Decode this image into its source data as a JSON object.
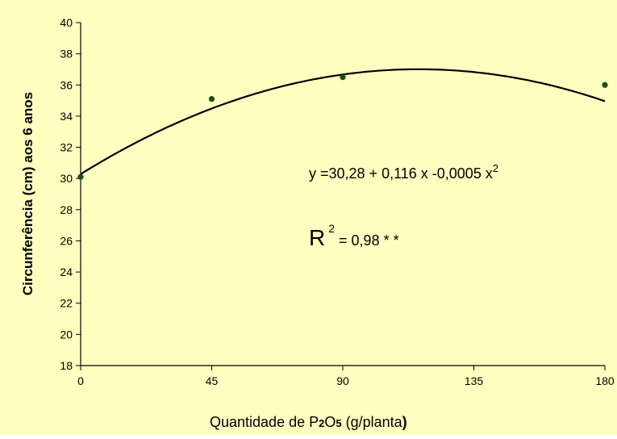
{
  "chart_data": {
    "type": "scatter",
    "title": "",
    "ylabel": "Circunferência  (cm) aos 6 anos",
    "xlabel": {
      "prefix": "Quantidade de P",
      "sub1": "2",
      "mid": "O",
      "sub2": "5",
      "unit": "  (g/planta",
      "close": ")"
    },
    "x_ticks": [
      0,
      45,
      90,
      135,
      180
    ],
    "y_ticks": [
      18,
      20,
      22,
      24,
      26,
      28,
      30,
      32,
      34,
      36,
      38,
      40
    ],
    "xlim": [
      0,
      180
    ],
    "ylim": [
      18,
      40
    ],
    "grid": false,
    "series": [
      {
        "kind": "points",
        "x": [
          0,
          45,
          90,
          180
        ],
        "y": [
          30.1,
          35.1,
          36.5,
          36.0
        ],
        "color": "#1a4d1a"
      },
      {
        "kind": "fit",
        "coefficients": [
          30.28,
          0.116,
          -0.0005
        ],
        "color": "#000000"
      }
    ],
    "annotations": {
      "equation_main": "y =30,28 + 0,116 x  -0,0005  x",
      "equation_sup": "2",
      "r2_letter": "R",
      "r2_sup": "2",
      "r2_rest": " = 0,98 * *"
    },
    "colors": {
      "background": "#ffffc0",
      "axis": "#000000",
      "marker": "#1a4d1a"
    }
  }
}
